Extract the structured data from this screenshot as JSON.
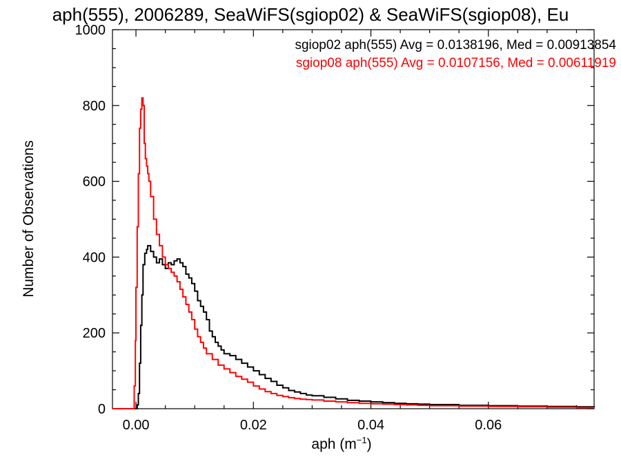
{
  "chart_data": {
    "type": "histogram",
    "title": "aph(555), 2006289, SeaWiFS(sgiop02) & SeaWiFS(sgiop08), Eu",
    "xlabel": {
      "base": "aph (m",
      "sup": "−1",
      "tail": ")"
    },
    "ylabel": "Number of Observations",
    "xlim": [
      -0.004,
      0.078
    ],
    "ylim": [
      0,
      1000
    ],
    "xticks": [
      0.0,
      0.02,
      0.04,
      0.06
    ],
    "xtick_labels": [
      "0.00",
      "0.02",
      "0.04",
      "0.06"
    ],
    "yticks": [
      0,
      200,
      400,
      600,
      800,
      1000
    ],
    "ytick_labels": [
      "0",
      "200",
      "400",
      "600",
      "800",
      "1000"
    ],
    "grid": false,
    "legend_position": "top-right",
    "series": [
      {
        "legend": "sgiop02 aph(555) Avg = 0.0138196, Med = 0.00913854",
        "color": "#000000",
        "points": [
          [
            -0.004,
            0
          ],
          [
            0.0,
            0
          ],
          [
            0.0002,
            10
          ],
          [
            0.0004,
            40
          ],
          [
            0.0006,
            120
          ],
          [
            0.0008,
            220
          ],
          [
            0.001,
            300
          ],
          [
            0.0012,
            380
          ],
          [
            0.0015,
            410
          ],
          [
            0.0018,
            420
          ],
          [
            0.002,
            430
          ],
          [
            0.0025,
            415
          ],
          [
            0.003,
            400
          ],
          [
            0.0035,
            385
          ],
          [
            0.004,
            395
          ],
          [
            0.0045,
            380
          ],
          [
            0.005,
            370
          ],
          [
            0.0055,
            385
          ],
          [
            0.006,
            380
          ],
          [
            0.0065,
            390
          ],
          [
            0.007,
            395
          ],
          [
            0.0075,
            385
          ],
          [
            0.008,
            375
          ],
          [
            0.0085,
            355
          ],
          [
            0.009,
            345
          ],
          [
            0.0095,
            330
          ],
          [
            0.01,
            310
          ],
          [
            0.0105,
            285
          ],
          [
            0.011,
            270
          ],
          [
            0.0115,
            255
          ],
          [
            0.012,
            235
          ],
          [
            0.0125,
            205
          ],
          [
            0.013,
            190
          ],
          [
            0.0135,
            175
          ],
          [
            0.014,
            165
          ],
          [
            0.0145,
            155
          ],
          [
            0.015,
            145
          ],
          [
            0.016,
            140
          ],
          [
            0.017,
            130
          ],
          [
            0.018,
            120
          ],
          [
            0.019,
            110
          ],
          [
            0.02,
            100
          ],
          [
            0.021,
            90
          ],
          [
            0.022,
            80
          ],
          [
            0.023,
            72
          ],
          [
            0.024,
            62
          ],
          [
            0.025,
            55
          ],
          [
            0.026,
            48
          ],
          [
            0.027,
            44
          ],
          [
            0.028,
            40
          ],
          [
            0.029,
            36
          ],
          [
            0.03,
            34
          ],
          [
            0.032,
            30
          ],
          [
            0.034,
            26
          ],
          [
            0.036,
            22
          ],
          [
            0.038,
            20
          ],
          [
            0.04,
            18
          ],
          [
            0.042,
            16
          ],
          [
            0.044,
            14
          ],
          [
            0.046,
            13
          ],
          [
            0.048,
            12
          ],
          [
            0.05,
            11
          ],
          [
            0.055,
            9
          ],
          [
            0.06,
            8
          ],
          [
            0.065,
            7
          ],
          [
            0.07,
            6
          ],
          [
            0.075,
            5
          ],
          [
            0.078,
            4
          ]
        ]
      },
      {
        "legend": "sgiop08 aph(555) Avg = 0.0107156, Med = 0.00611919",
        "color": "#ff0000",
        "points": [
          [
            -0.004,
            0
          ],
          [
            -0.0005,
            0
          ],
          [
            -0.0003,
            60
          ],
          [
            -0.0001,
            180
          ],
          [
            0.0,
            320
          ],
          [
            0.0002,
            480
          ],
          [
            0.0004,
            620
          ],
          [
            0.0006,
            740
          ],
          [
            0.0008,
            790
          ],
          [
            0.001,
            820
          ],
          [
            0.0012,
            800
          ],
          [
            0.0014,
            700
          ],
          [
            0.0016,
            660
          ],
          [
            0.0018,
            640
          ],
          [
            0.002,
            620
          ],
          [
            0.0022,
            600
          ],
          [
            0.0025,
            560
          ],
          [
            0.003,
            500
          ],
          [
            0.0035,
            460
          ],
          [
            0.004,
            430
          ],
          [
            0.0045,
            400
          ],
          [
            0.005,
            380
          ],
          [
            0.0055,
            370
          ],
          [
            0.006,
            360
          ],
          [
            0.0065,
            350
          ],
          [
            0.007,
            335
          ],
          [
            0.0075,
            315
          ],
          [
            0.008,
            295
          ],
          [
            0.0085,
            275
          ],
          [
            0.009,
            255
          ],
          [
            0.0095,
            235
          ],
          [
            0.01,
            210
          ],
          [
            0.0105,
            190
          ],
          [
            0.011,
            175
          ],
          [
            0.0115,
            160
          ],
          [
            0.012,
            145
          ],
          [
            0.013,
            130
          ],
          [
            0.014,
            115
          ],
          [
            0.015,
            105
          ],
          [
            0.016,
            95
          ],
          [
            0.017,
            85
          ],
          [
            0.018,
            78
          ],
          [
            0.019,
            70
          ],
          [
            0.02,
            60
          ],
          [
            0.021,
            52
          ],
          [
            0.022,
            45
          ],
          [
            0.023,
            40
          ],
          [
            0.024,
            35
          ],
          [
            0.025,
            32
          ],
          [
            0.026,
            29
          ],
          [
            0.027,
            27
          ],
          [
            0.028,
            25
          ],
          [
            0.029,
            24
          ],
          [
            0.03,
            23
          ],
          [
            0.032,
            20
          ],
          [
            0.034,
            18
          ],
          [
            0.036,
            16
          ],
          [
            0.038,
            14
          ],
          [
            0.04,
            13
          ],
          [
            0.042,
            12
          ],
          [
            0.044,
            11
          ],
          [
            0.046,
            10
          ],
          [
            0.048,
            9
          ],
          [
            0.05,
            8
          ],
          [
            0.055,
            7
          ],
          [
            0.06,
            6
          ],
          [
            0.065,
            5
          ],
          [
            0.07,
            4
          ],
          [
            0.075,
            3
          ],
          [
            0.078,
            3
          ]
        ]
      }
    ]
  }
}
